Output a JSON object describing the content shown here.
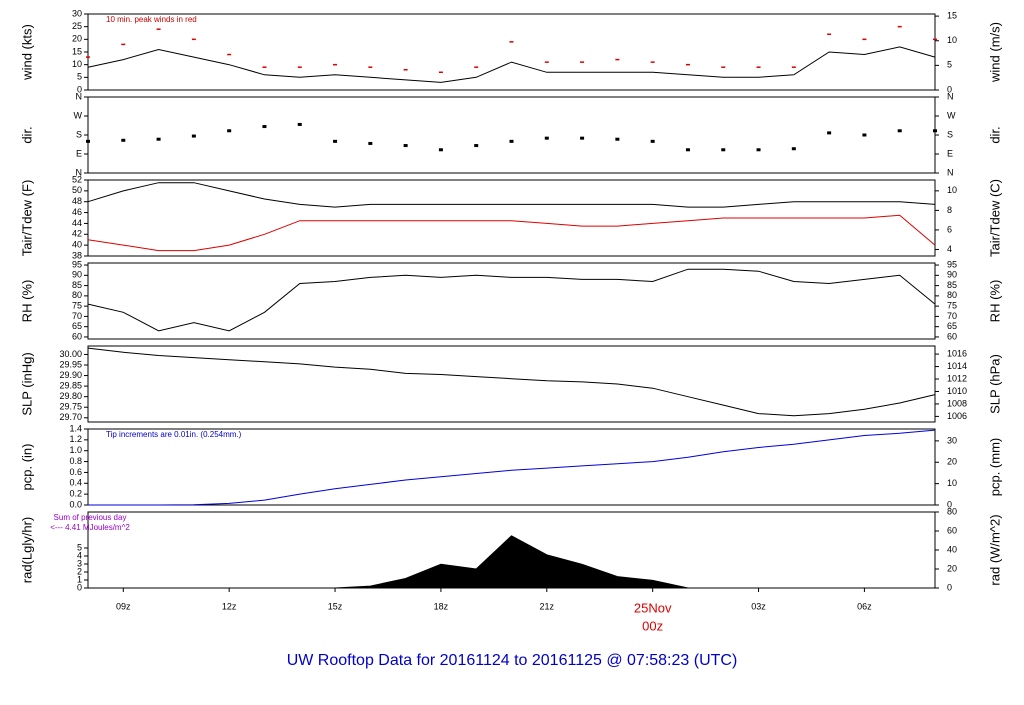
{
  "title": "UW Rooftop Data for 20161124  to  20161125 @ 07:58:23  (UTC)",
  "chart_data": [
    {
      "type": "line",
      "ylabel": "wind (kts)",
      "y2label": "wind (m/s)",
      "annotation": "10 min. peak winds in red",
      "annotation_color": "#cc0000",
      "xlim": [
        8,
        32
      ],
      "ylim": [
        0,
        30
      ],
      "yticks": [
        0,
        5,
        10,
        15,
        20,
        25,
        30
      ],
      "y2lim": [
        0,
        15.43
      ],
      "y2ticks": [
        0,
        5,
        10,
        15
      ],
      "x": [
        8,
        9,
        10,
        11,
        12,
        13,
        14,
        15,
        16,
        17,
        18,
        19,
        20,
        21,
        22,
        23,
        24,
        25,
        26,
        27,
        28,
        29,
        30,
        31,
        32
      ],
      "series": [
        {
          "name": "wind",
          "style": "line",
          "color": "#000000",
          "values": [
            9,
            12,
            16,
            13,
            10,
            6,
            5,
            6,
            5,
            4,
            3,
            5,
            11,
            7,
            7,
            7,
            7,
            6,
            5,
            5,
            6,
            15,
            14,
            17,
            13
          ]
        },
        {
          "name": "peak",
          "style": "dash",
          "color": "#dd0000",
          "values": [
            13,
            18,
            24,
            20,
            14,
            9,
            9,
            10,
            9,
            8,
            7,
            9,
            19,
            11,
            11,
            12,
            11,
            10,
            9,
            9,
            9,
            22,
            20,
            25,
            20
          ]
        }
      ]
    },
    {
      "type": "line",
      "ylabel": "dir.",
      "y2label": "dir.",
      "xlim": [
        8,
        32
      ],
      "ylim": [
        0,
        360
      ],
      "yticks": [
        {
          "value": 0,
          "label": "N"
        },
        {
          "value": 90,
          "label": "E"
        },
        {
          "value": 180,
          "label": "S"
        },
        {
          "value": 270,
          "label": "W"
        },
        {
          "value": 360,
          "label": "N"
        }
      ],
      "y2lim": [
        0,
        360
      ],
      "y2ticks": [
        {
          "value": 0,
          "label": "N"
        },
        {
          "value": 90,
          "label": "E"
        },
        {
          "value": 180,
          "label": "S"
        },
        {
          "value": 270,
          "label": "W"
        },
        {
          "value": 360,
          "label": "N"
        }
      ],
      "x": [
        8,
        9,
        10,
        11,
        12,
        13,
        14,
        15,
        16,
        17,
        18,
        19,
        20,
        21,
        22,
        23,
        24,
        25,
        26,
        27,
        28,
        29,
        30,
        31,
        32
      ],
      "series": [
        {
          "name": "direction",
          "style": "dot",
          "color": "#000000",
          "values": [
            150,
            155,
            160,
            175,
            200,
            220,
            230,
            150,
            140,
            130,
            110,
            130,
            150,
            165,
            165,
            160,
            150,
            110,
            110,
            110,
            115,
            190,
            180,
            200,
            200
          ]
        }
      ]
    },
    {
      "type": "line",
      "ylabel": "Tair/Tdew (F)",
      "y2label": "Tair/Tdew (C)",
      "xlim": [
        8,
        32
      ],
      "ylim": [
        38,
        52
      ],
      "yticks": [
        38,
        40,
        42,
        44,
        46,
        48,
        50,
        52
      ],
      "y2lim": [
        3.33,
        11.11
      ],
      "y2ticks": [
        4,
        6,
        8,
        10
      ],
      "x": [
        8,
        9,
        10,
        11,
        12,
        13,
        14,
        15,
        16,
        17,
        18,
        19,
        20,
        21,
        22,
        23,
        24,
        25,
        26,
        27,
        28,
        29,
        30,
        31,
        32
      ],
      "series": [
        {
          "name": "Tair",
          "style": "line",
          "color": "#000000",
          "values": [
            48,
            50,
            51.5,
            51.5,
            50,
            48.5,
            47.5,
            47,
            47.5,
            47.5,
            47.5,
            47.5,
            47.5,
            47.5,
            47.5,
            47.5,
            47.5,
            47,
            47,
            47.5,
            48,
            48,
            48,
            48,
            47.5
          ]
        },
        {
          "name": "Tdew",
          "style": "line",
          "color": "#dd0000",
          "values": [
            41,
            40,
            39,
            39,
            40,
            42,
            44.5,
            44.5,
            44.5,
            44.5,
            44.5,
            44.5,
            44.5,
            44,
            43.5,
            43.5,
            44,
            44.5,
            45,
            45,
            45,
            45,
            45,
            45.5,
            40
          ]
        }
      ]
    },
    {
      "type": "line",
      "ylabel": "RH (%)",
      "y2label": "RH (%)",
      "xlim": [
        8,
        32
      ],
      "ylim": [
        59,
        96
      ],
      "yticks": [
        60,
        65,
        70,
        75,
        80,
        85,
        90,
        95
      ],
      "y2lim": [
        59,
        96
      ],
      "y2ticks": [
        60,
        65,
        70,
        75,
        80,
        85,
        90,
        95
      ],
      "x": [
        8,
        9,
        10,
        11,
        12,
        13,
        14,
        15,
        16,
        17,
        18,
        19,
        20,
        21,
        22,
        23,
        24,
        25,
        26,
        27,
        28,
        29,
        30,
        31,
        32
      ],
      "series": [
        {
          "name": "RH",
          "style": "line",
          "color": "#000000",
          "values": [
            76,
            72,
            63,
            67,
            63,
            72,
            86,
            87,
            89,
            90,
            89,
            90,
            89,
            89,
            88,
            88,
            87,
            93,
            93,
            92,
            87,
            86,
            88,
            90,
            76
          ]
        }
      ]
    },
    {
      "type": "line",
      "ylabel": "SLP (inHg)",
      "y2label": "SLP (hPa)",
      "xlim": [
        8,
        32
      ],
      "ylim": [
        29.68,
        30.04
      ],
      "yticks": [
        {
          "value": 29.7,
          "label": "29.70"
        },
        29.75,
        {
          "value": 29.8,
          "label": "29.80"
        },
        29.85,
        {
          "value": 29.9,
          "label": "29.90"
        },
        29.95,
        {
          "value": 30,
          "label": "30.00"
        }
      ],
      "y2lim": [
        1005.1,
        1017.3
      ],
      "y2ticks": [
        1006,
        1008,
        1010,
        1012,
        1014,
        1016
      ],
      "x": [
        8,
        9,
        10,
        11,
        12,
        13,
        14,
        15,
        16,
        17,
        18,
        19,
        20,
        21,
        22,
        23,
        24,
        25,
        26,
        27,
        28,
        29,
        30,
        31,
        32
      ],
      "series": [
        {
          "name": "SLP",
          "style": "line",
          "color": "#000000",
          "values": [
            30.03,
            30.01,
            29.995,
            29.985,
            29.975,
            29.965,
            29.955,
            29.94,
            29.93,
            29.91,
            29.905,
            29.895,
            29.885,
            29.875,
            29.87,
            29.86,
            29.84,
            29.8,
            29.76,
            29.72,
            29.71,
            29.72,
            29.74,
            29.77,
            29.81
          ]
        }
      ]
    },
    {
      "type": "line",
      "ylabel": "pcp. (in)",
      "y2label": "pcp. (mm)",
      "annotation": "Tip increments are 0.01in. (0.254mm.)",
      "annotation_color": "#0000cc",
      "xlim": [
        8,
        32
      ],
      "ylim": [
        0,
        1.4
      ],
      "yticks": [
        {
          "value": 0,
          "label": "0.0"
        },
        0.2,
        0.4,
        0.6,
        0.8,
        {
          "value": 1,
          "label": "1.0"
        },
        1.2,
        1.4
      ],
      "y2lim": [
        0,
        35.56
      ],
      "y2ticks": [
        0,
        10,
        20,
        30
      ],
      "x": [
        8,
        9,
        10,
        11,
        12,
        13,
        14,
        15,
        16,
        17,
        18,
        19,
        20,
        21,
        22,
        23,
        24,
        25,
        26,
        27,
        28,
        29,
        30,
        31,
        32
      ],
      "series": [
        {
          "name": "pcp",
          "style": "line",
          "color": "#0000dd",
          "values": [
            0,
            0,
            0,
            0.005,
            0.03,
            0.09,
            0.2,
            0.3,
            0.38,
            0.46,
            0.52,
            0.58,
            0.64,
            0.68,
            0.72,
            0.76,
            0.8,
            0.88,
            0.98,
            1.06,
            1.12,
            1.2,
            1.28,
            1.32,
            1.38
          ]
        }
      ]
    },
    {
      "type": "line",
      "ylabel": "rad(Lgly/hr)",
      "y2label": "rad (W/m^2)",
      "annotation": "Sum of previous day",
      "annotation2": "<--- 4.41 MJoules/m^2",
      "annotation_color": "#9900cc",
      "xlim": [
        8,
        32
      ],
      "ylim": [
        0,
        9.5
      ],
      "yticks": [
        0,
        1,
        2,
        3,
        4,
        5
      ],
      "y2lim": [
        0,
        80
      ],
      "y2ticks": [
        0,
        20,
        40,
        60,
        80
      ],
      "xticks": [
        {
          "value": 9,
          "label": "09z"
        },
        {
          "value": 12,
          "label": "12z"
        },
        {
          "value": 15,
          "label": "15z"
        },
        {
          "value": 18,
          "label": "18z"
        },
        {
          "value": 21,
          "label": "21z"
        },
        {
          "value": 24,
          "label": "00z"
        },
        {
          "value": 27,
          "label": "03z"
        },
        {
          "value": 30,
          "label": "06z"
        }
      ],
      "date_label": {
        "value": 24,
        "text": "25Nov"
      },
      "x": [
        8,
        9,
        10,
        11,
        12,
        13,
        14,
        15,
        16,
        17,
        18,
        19,
        20,
        21,
        22,
        23,
        24,
        25,
        26,
        27,
        28,
        29,
        30,
        31,
        32
      ],
      "series": [
        {
          "name": "radiation",
          "style": "area",
          "axis": "y2",
          "color": "#000000",
          "values": [
            null,
            null,
            null,
            null,
            null,
            null,
            null,
            0,
            2,
            10,
            25,
            20,
            55,
            35,
            25,
            12,
            8,
            0,
            null,
            null,
            null,
            null,
            null,
            null,
            null
          ]
        }
      ]
    }
  ]
}
